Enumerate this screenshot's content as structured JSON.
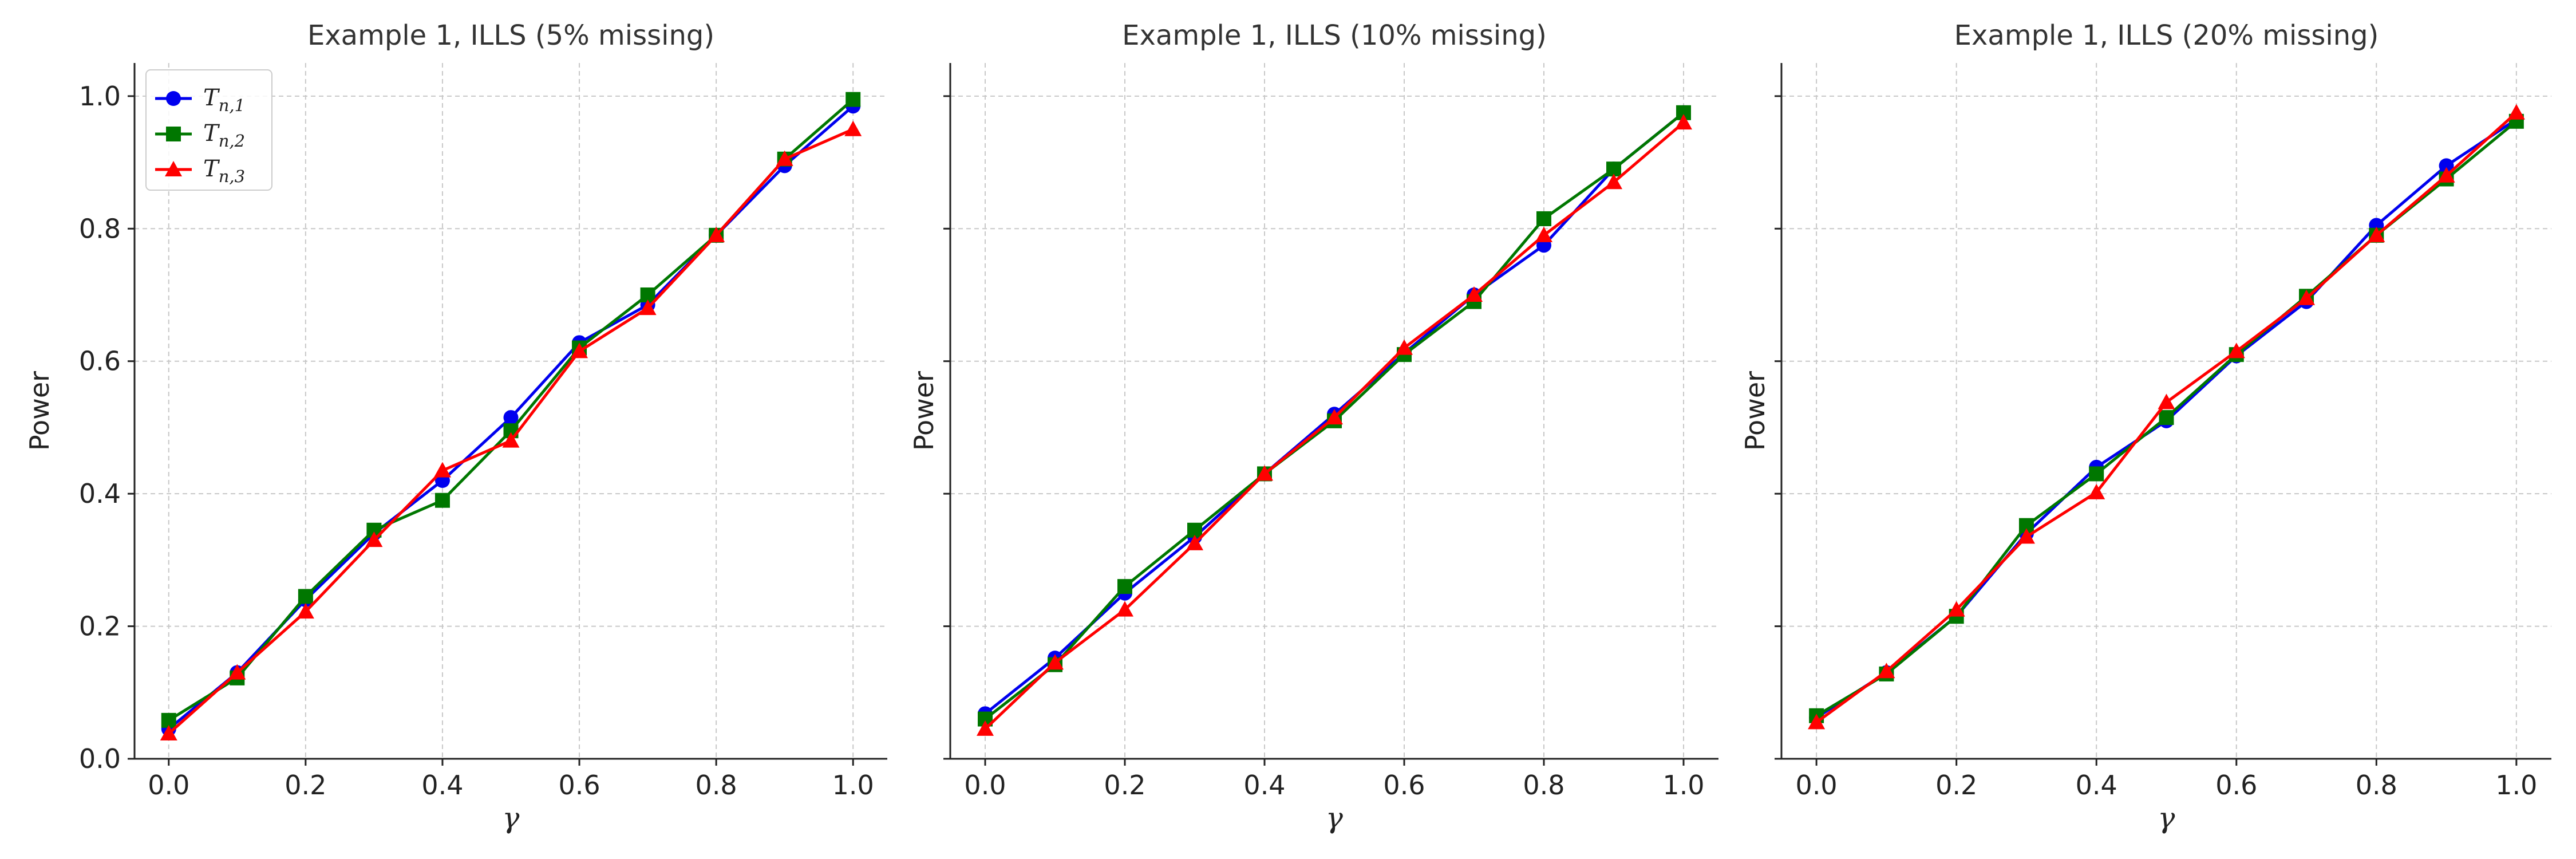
{
  "chart_data": [
    {
      "type": "line",
      "title": "Example 1, ILLS (5% missing)",
      "xlabel": "γ",
      "ylabel": "Power",
      "xlim": [
        -0.05,
        1.05
      ],
      "ylim": [
        0.0,
        1.05
      ],
      "x": [
        0.0,
        0.1,
        0.2,
        0.3,
        0.4,
        0.5,
        0.6,
        0.7,
        0.8,
        0.9,
        1.0
      ],
      "xticks": [
        "0.0",
        "0.2",
        "0.4",
        "0.6",
        "0.8",
        "1.0"
      ],
      "yticks": [
        "0.0",
        "0.2",
        "0.4",
        "0.6",
        "0.8",
        "1.0"
      ],
      "grid": true,
      "legend_position": "top-left",
      "series": [
        {
          "name": "T_{n,1}",
          "color": "#0000ee",
          "marker": "circle",
          "values": [
            0.045,
            0.13,
            0.24,
            0.34,
            0.42,
            0.515,
            0.628,
            0.685,
            0.79,
            0.895,
            0.985
          ]
        },
        {
          "name": "T_{n,2}",
          "color": "#007700",
          "marker": "square",
          "values": [
            0.058,
            0.122,
            0.245,
            0.345,
            0.39,
            0.495,
            0.62,
            0.7,
            0.79,
            0.905,
            0.995
          ]
        },
        {
          "name": "T_{n,3}",
          "color": "#ff0000",
          "marker": "triangle",
          "values": [
            0.038,
            0.13,
            0.222,
            0.33,
            0.435,
            0.48,
            0.615,
            0.68,
            0.79,
            0.905,
            0.95
          ]
        }
      ]
    },
    {
      "type": "line",
      "title": "Example 1, ILLS (10% missing)",
      "xlabel": "γ",
      "ylabel": "Power",
      "xlim": [
        -0.05,
        1.05
      ],
      "ylim": [
        0.0,
        1.05
      ],
      "x": [
        0.0,
        0.1,
        0.2,
        0.3,
        0.4,
        0.5,
        0.6,
        0.7,
        0.8,
        0.9,
        1.0
      ],
      "xticks": [
        "0.0",
        "0.2",
        "0.4",
        "0.6",
        "0.8",
        "1.0"
      ],
      "yticks": [
        "0.0",
        "0.2",
        "0.4",
        "0.6",
        "0.8",
        "1.0"
      ],
      "grid": true,
      "series": [
        {
          "name": "T_{n,1}",
          "color": "#0000ee",
          "marker": "circle",
          "values": [
            0.068,
            0.152,
            0.25,
            0.335,
            0.43,
            0.52,
            0.612,
            0.7,
            0.775,
            0.89,
            0.975
          ]
        },
        {
          "name": "T_{n,2}",
          "color": "#007700",
          "marker": "square",
          "values": [
            0.06,
            0.142,
            0.26,
            0.345,
            0.43,
            0.51,
            0.61,
            0.69,
            0.815,
            0.89,
            0.975
          ]
        },
        {
          "name": "T_{n,3}",
          "color": "#ff0000",
          "marker": "triangle",
          "values": [
            0.045,
            0.145,
            0.225,
            0.325,
            0.43,
            0.515,
            0.62,
            0.7,
            0.79,
            0.87,
            0.96
          ]
        }
      ]
    },
    {
      "type": "line",
      "title": "Example 1, ILLS (20% missing)",
      "xlabel": "γ",
      "ylabel": "Power",
      "xlim": [
        -0.05,
        1.05
      ],
      "ylim": [
        0.0,
        1.05
      ],
      "x": [
        0.0,
        0.1,
        0.2,
        0.3,
        0.4,
        0.5,
        0.6,
        0.7,
        0.8,
        0.9,
        1.0
      ],
      "xticks": [
        "0.0",
        "0.2",
        "0.4",
        "0.6",
        "0.8",
        "1.0"
      ],
      "yticks": [
        "0.0",
        "0.2",
        "0.4",
        "0.6",
        "0.8",
        "1.0"
      ],
      "grid": true,
      "series": [
        {
          "name": "T_{n,1}",
          "color": "#0000ee",
          "marker": "circle",
          "values": [
            0.062,
            0.13,
            0.215,
            0.34,
            0.44,
            0.51,
            0.608,
            0.69,
            0.805,
            0.895,
            0.965
          ]
        },
        {
          "name": "T_{n,2}",
          "color": "#007700",
          "marker": "square",
          "values": [
            0.065,
            0.128,
            0.215,
            0.352,
            0.43,
            0.515,
            0.61,
            0.698,
            0.79,
            0.875,
            0.962
          ]
        },
        {
          "name": "T_{n,3}",
          "color": "#ff0000",
          "marker": "triangle",
          "values": [
            0.055,
            0.132,
            0.225,
            0.335,
            0.402,
            0.538,
            0.615,
            0.695,
            0.79,
            0.88,
            0.975
          ]
        }
      ]
    }
  ]
}
